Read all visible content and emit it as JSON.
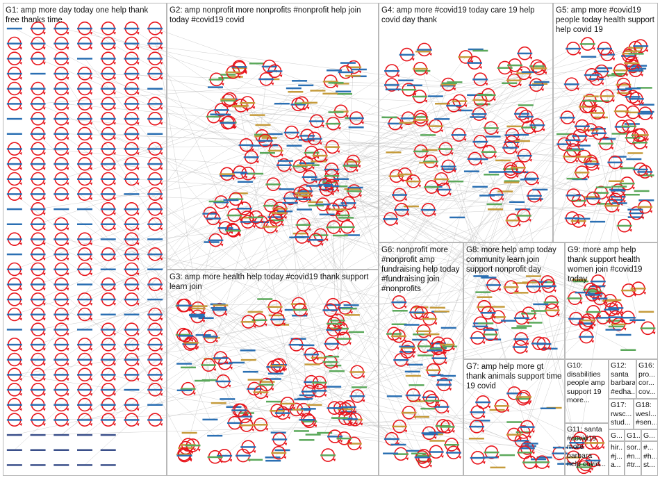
{
  "colors": {
    "edge": "#b9b9b9",
    "self_loop": "#e8141b",
    "node_label_a": "#2a6fb3",
    "node_label_b": "#5aa85a",
    "node_label_c": "#c59b3b",
    "border": "#b8b8b8",
    "text": "#111111"
  },
  "groups": [
    {
      "id": "G1",
      "label": "G1: amp more day today one help thank free thanks time"
    },
    {
      "id": "G2",
      "label": "G2: amp nonprofit more nonprofits #nonprofit help join today #covid19 covid"
    },
    {
      "id": "G3",
      "label": "G3: amp more health help today #covid19 thank support learn join"
    },
    {
      "id": "G4",
      "label": "G4: amp more #covid19 today care 19 help covid day thank"
    },
    {
      "id": "G5",
      "label": "G5: amp more #covid19 people today health support help covid 19"
    },
    {
      "id": "G6",
      "label": "G6: nonprofit more #nonprofit amp fundraising help today #fundraising join #nonprofits"
    },
    {
      "id": "G7",
      "label": "G7: amp help more gt thank animals support time 19 covid"
    },
    {
      "id": "G8",
      "label": "G8: more help amp today community learn join support nonprofit day"
    },
    {
      "id": "G9",
      "label": "G9: more amp help thank support health women join #covid19 today"
    },
    {
      "id": "G10",
      "label": "G10: disabilities people amp support 19 more..."
    },
    {
      "id": "G11",
      "label": "G11: santa #covid19 more barbara help covid..."
    },
    {
      "id": "G12",
      "label": "G12: santa barbara #edha..."
    },
    {
      "id": "G13",
      "label": "G..."
    },
    {
      "id": "G14",
      "label": "G1..."
    },
    {
      "id": "G15",
      "label": "G..."
    },
    {
      "id": "G16",
      "label": "G16: pro... cor... cov..."
    },
    {
      "id": "G17",
      "label": "G17: rwsc... stud..."
    },
    {
      "id": "G18",
      "label": "G18: wesl... #sen..."
    },
    {
      "id": "G19",
      "label": "hir... #j... a..."
    },
    {
      "id": "G20",
      "label": "sor... #n... #tr..."
    },
    {
      "id": "G21",
      "label": "#... #h... st..."
    }
  ]
}
